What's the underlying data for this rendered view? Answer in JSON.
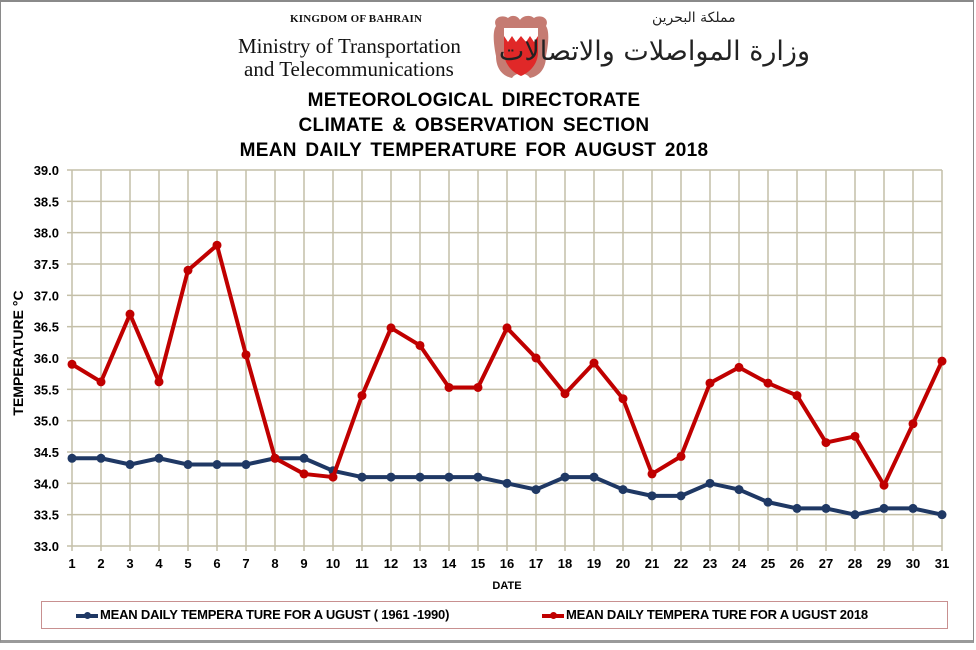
{
  "header": {
    "country_en": "KINGDOM OF BAHRAIN",
    "ministry_en_line1": "Ministry of Transportation",
    "ministry_en_line2": "and Telecommunications",
    "country_ar": "مملكة البحرين",
    "ministry_ar": "وزارة المواصلات والاتصالات",
    "emblem_icon": "bahrain-emblem-icon"
  },
  "titles": {
    "line1": "METEOROLOGICAL DIRECTORATE",
    "line2": "CLIMATE & OBSERVATION SECTION",
    "line3": "MEAN DAILY TEMPERATURE FOR AUGUST 2018"
  },
  "colors": {
    "normal_series": "#1f3864",
    "series_2018": "#c00000",
    "grid": "#c4bfa8",
    "legend_border": "#c89090"
  },
  "chart_data": {
    "type": "line",
    "title": "MEAN DAILY TEMPERATURE FOR AUGUST 2018",
    "xlabel": "DATE",
    "ylabel": "TEMPERATURE °C",
    "ylim": [
      33.0,
      39.0
    ],
    "y_ticks": [
      "33.0",
      "33.5",
      "34.0",
      "34.5",
      "35.0",
      "35.5",
      "36.0",
      "36.5",
      "37.0",
      "37.5",
      "38.0",
      "38.5",
      "39.0"
    ],
    "x": [
      1,
      2,
      3,
      4,
      5,
      6,
      7,
      8,
      9,
      10,
      11,
      12,
      13,
      14,
      15,
      16,
      17,
      18,
      19,
      20,
      21,
      22,
      23,
      24,
      25,
      26,
      27,
      28,
      29,
      30,
      31
    ],
    "grid": true,
    "legend_position": "bottom",
    "series": [
      {
        "name": "MEAN DAILY TEMPERA TURE FOR A UGUST ( 1961 -1990)",
        "color": "#1f3864",
        "values": [
          34.4,
          34.4,
          34.3,
          34.4,
          34.3,
          34.3,
          34.3,
          34.4,
          34.4,
          34.2,
          34.1,
          34.1,
          34.1,
          34.1,
          34.1,
          34.0,
          33.9,
          34.1,
          34.1,
          33.9,
          33.8,
          33.8,
          34.0,
          33.9,
          33.7,
          33.6,
          33.6,
          33.5,
          33.6,
          33.6,
          33.5
        ]
      },
      {
        "name": "MEAN DAILY TEMPERA TURE FOR A UGUST 2018",
        "color": "#c00000",
        "values": [
          35.9,
          35.62,
          36.7,
          35.62,
          37.4,
          37.8,
          36.05,
          34.4,
          34.15,
          34.1,
          35.4,
          36.48,
          36.2,
          35.53,
          35.53,
          36.48,
          36.0,
          35.43,
          35.92,
          35.35,
          34.15,
          34.43,
          35.6,
          35.85,
          35.6,
          35.4,
          34.65,
          34.75,
          33.97,
          34.95,
          35.95
        ]
      }
    ]
  }
}
